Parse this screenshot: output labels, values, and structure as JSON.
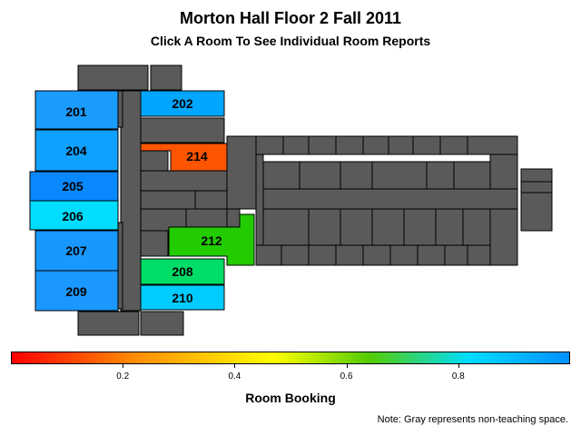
{
  "title": "Morton Hall Floor 2 Fall 2011",
  "subtitle": "Click A Room To See Individual Room Reports",
  "colorbar": {
    "label": "Room Booking",
    "ticks": [
      "0.2",
      "0.4",
      "0.6",
      "0.8"
    ],
    "tick_values": [
      0.2,
      0.4,
      0.6,
      0.8
    ],
    "range": [
      0,
      1
    ]
  },
  "note": "Note: Gray represents non-teaching space.",
  "colors": {
    "non_teaching": "#5a5a5a",
    "outline": "#000000"
  },
  "rooms": [
    {
      "id": "201",
      "label": "201",
      "booking": 0.93,
      "color": "#1a9cff"
    },
    {
      "id": "202",
      "label": "202",
      "booking": 0.91,
      "color": "#00a6ff"
    },
    {
      "id": "204",
      "label": "204",
      "booking": 0.92,
      "color": "#10a0ff"
    },
    {
      "id": "205",
      "label": "205",
      "booking": 0.96,
      "color": "#0a88ff"
    },
    {
      "id": "206",
      "label": "206",
      "booking": 0.83,
      "color": "#00ddff"
    },
    {
      "id": "207",
      "label": "207",
      "booking": 0.92,
      "color": "#1898ff"
    },
    {
      "id": "208",
      "label": "208",
      "booking": 0.72,
      "color": "#00dd66"
    },
    {
      "id": "209",
      "label": "209",
      "booking": 0.92,
      "color": "#1a98ff"
    },
    {
      "id": "210",
      "label": "210",
      "booking": 0.85,
      "color": "#00ccff"
    },
    {
      "id": "212",
      "label": "212",
      "booking": 0.66,
      "color": "#22cc00"
    },
    {
      "id": "214",
      "label": "214",
      "booking": 0.22,
      "color": "#ff5500"
    }
  ]
}
